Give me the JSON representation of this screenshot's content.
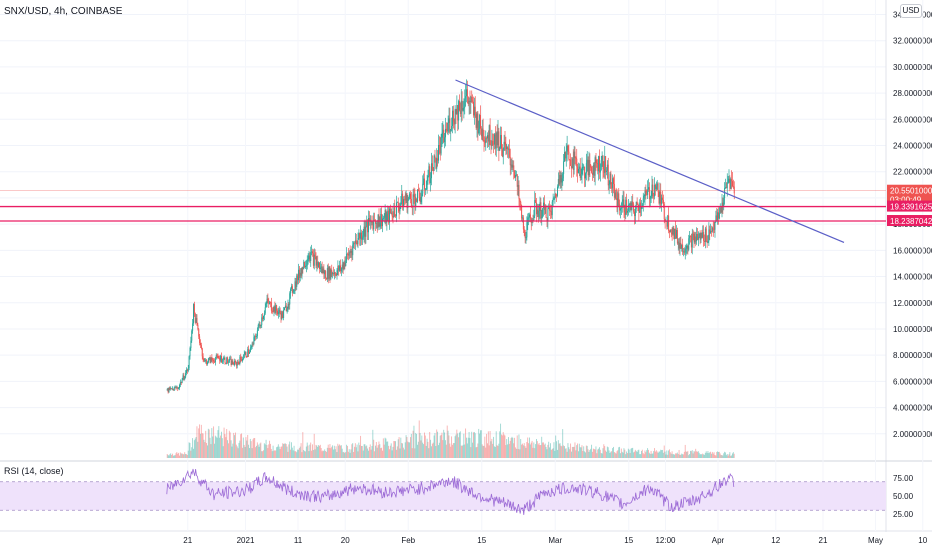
{
  "header": {
    "symbol_label": "SNX/USD, 4h, COINBASE",
    "currency": "USD"
  },
  "rsi_panel": {
    "title": "RSI (14, close)",
    "axis_ticks": [
      "75.00",
      "50.00",
      "25.00"
    ]
  },
  "colors": {
    "up": "#26a69a",
    "down": "#ef5350",
    "trendline": "#5b5fc7",
    "level_line": "#e91e63",
    "rsi_line": "#9c6bd6",
    "rsi_band": "#efe2fb"
  },
  "chart_data": {
    "type": "candlestick",
    "price_axis": {
      "ticks": [
        "34.00000000",
        "32.00000000",
        "30.00000000",
        "28.00000000",
        "26.00000000",
        "24.00000000",
        "22.00000000",
        "20.00000000",
        "18.00000000",
        "16.00000000",
        "14.00000000",
        "12.00000000",
        "10.00000000",
        "8.00000000",
        "6.00000000",
        "4.00000000",
        "2.00000000"
      ],
      "range": [
        0,
        34.8
      ]
    },
    "time_axis": {
      "ticks": [
        "21",
        "2021",
        "11",
        "20",
        "Feb",
        "15",
        "Mar",
        "15",
        "12:00",
        "Apr",
        "12",
        "21",
        "May",
        "10"
      ]
    },
    "price_labels": [
      {
        "value": "20.55010000",
        "sub": "03:00:49",
        "color": "#ef5350"
      },
      {
        "value": "19.33916250",
        "color": "#e91e63"
      },
      {
        "value": "18.23870424",
        "color": "#e91e63"
      }
    ],
    "levels": [
      19.34,
      18.24
    ],
    "last_price": 20.55,
    "trendline": {
      "from": {
        "date": "2021-02-10",
        "price": 29.0
      },
      "to": {
        "date": "2021-04-25",
        "price": 16.6
      }
    },
    "price_path": [
      {
        "date": "2020-12-17",
        "price": 5.3
      },
      {
        "date": "2020-12-19",
        "price": 5.5
      },
      {
        "date": "2020-12-21",
        "price": 7.0
      },
      {
        "date": "2020-12-22",
        "price": 11.5
      },
      {
        "date": "2020-12-24",
        "price": 7.5
      },
      {
        "date": "2020-12-27",
        "price": 7.8
      },
      {
        "date": "2020-12-30",
        "price": 7.3
      },
      {
        "date": "2021-01-02",
        "price": 8.5
      },
      {
        "date": "2021-01-05",
        "price": 12.0
      },
      {
        "date": "2021-01-08",
        "price": 11.0
      },
      {
        "date": "2021-01-10",
        "price": 13.2
      },
      {
        "date": "2021-01-13",
        "price": 15.8
      },
      {
        "date": "2021-01-16",
        "price": 14.2
      },
      {
        "date": "2021-01-19",
        "price": 14.5
      },
      {
        "date": "2021-01-22",
        "price": 16.8
      },
      {
        "date": "2021-01-25",
        "price": 18.2
      },
      {
        "date": "2021-01-28",
        "price": 18.5
      },
      {
        "date": "2021-01-31",
        "price": 19.8
      },
      {
        "date": "2021-02-03",
        "price": 20.0
      },
      {
        "date": "2021-02-06",
        "price": 22.8
      },
      {
        "date": "2021-02-09",
        "price": 26.0
      },
      {
        "date": "2021-02-12",
        "price": 27.8
      },
      {
        "date": "2021-02-15",
        "price": 25.0
      },
      {
        "date": "2021-02-18",
        "price": 24.5
      },
      {
        "date": "2021-02-21",
        "price": 22.5
      },
      {
        "date": "2021-02-23",
        "price": 17.2
      },
      {
        "date": "2021-02-25",
        "price": 19.2
      },
      {
        "date": "2021-02-28",
        "price": 18.8
      },
      {
        "date": "2021-03-03",
        "price": 23.5
      },
      {
        "date": "2021-03-06",
        "price": 22.0
      },
      {
        "date": "2021-03-10",
        "price": 22.8
      },
      {
        "date": "2021-03-13",
        "price": 19.5
      },
      {
        "date": "2021-03-16",
        "price": 19.0
      },
      {
        "date": "2021-03-20",
        "price": 21.0
      },
      {
        "date": "2021-03-22",
        "price": 18.5
      },
      {
        "date": "2021-03-25",
        "price": 16.2
      },
      {
        "date": "2021-03-27",
        "price": 16.8
      },
      {
        "date": "2021-03-30",
        "price": 17.2
      },
      {
        "date": "2021-04-01",
        "price": 18.5
      },
      {
        "date": "2021-04-03",
        "price": 21.5
      },
      {
        "date": "2021-04-04",
        "price": 20.55
      }
    ],
    "rsi_path": [
      {
        "date": "2020-12-17",
        "value": 58
      },
      {
        "date": "2020-12-22",
        "value": 85
      },
      {
        "date": "2020-12-26",
        "value": 52
      },
      {
        "date": "2021-01-01",
        "value": 58
      },
      {
        "date": "2021-01-05",
        "value": 76
      },
      {
        "date": "2021-01-10",
        "value": 55
      },
      {
        "date": "2021-01-16",
        "value": 48
      },
      {
        "date": "2021-01-22",
        "value": 62
      },
      {
        "date": "2021-01-28",
        "value": 55
      },
      {
        "date": "2021-02-03",
        "value": 60
      },
      {
        "date": "2021-02-09",
        "value": 72
      },
      {
        "date": "2021-02-14",
        "value": 52
      },
      {
        "date": "2021-02-19",
        "value": 40
      },
      {
        "date": "2021-02-23",
        "value": 30
      },
      {
        "date": "2021-02-27",
        "value": 55
      },
      {
        "date": "2021-03-04",
        "value": 62
      },
      {
        "date": "2021-03-09",
        "value": 55
      },
      {
        "date": "2021-03-14",
        "value": 38
      },
      {
        "date": "2021-03-19",
        "value": 62
      },
      {
        "date": "2021-03-23",
        "value": 35
      },
      {
        "date": "2021-03-27",
        "value": 42
      },
      {
        "date": "2021-03-31",
        "value": 58
      },
      {
        "date": "2021-04-03",
        "value": 76
      },
      {
        "date": "2021-04-04",
        "value": 68
      }
    ],
    "volume_path": [
      {
        "date": "2020-12-21",
        "level": 0.35
      },
      {
        "date": "2020-12-23",
        "level": 0.95
      },
      {
        "date": "2021-01-05",
        "level": 0.45
      },
      {
        "date": "2021-01-20",
        "level": 0.35
      },
      {
        "date": "2021-02-10",
        "level": 0.8
      },
      {
        "date": "2021-02-23",
        "level": 0.6
      },
      {
        "date": "2021-03-10",
        "level": 0.3
      },
      {
        "date": "2021-04-04",
        "level": 0.15
      }
    ]
  }
}
